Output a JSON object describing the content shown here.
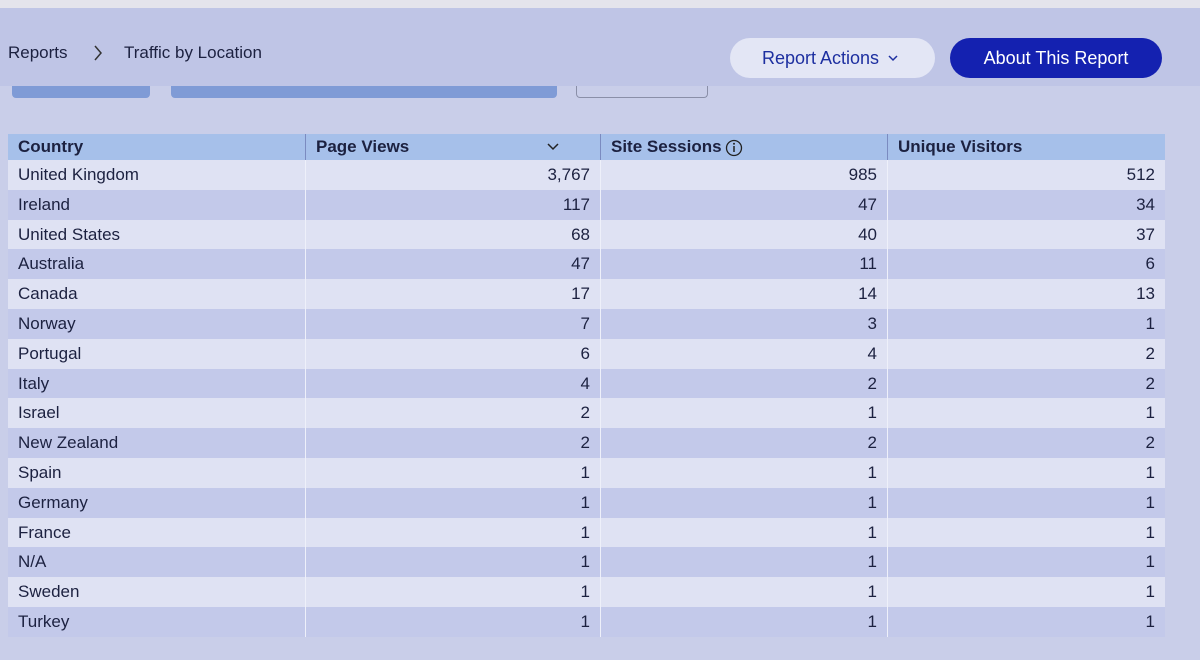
{
  "header": {
    "breadcrumb": [
      "Reports",
      "Traffic by Location"
    ],
    "buttons": [
      "Report Actions",
      "About This Report"
    ]
  },
  "table": {
    "columns": [
      "Country",
      "Page Views",
      "Site Sessions",
      "Unique Visitors"
    ],
    "rows": [
      [
        "United Kingdom",
        "3,767",
        "985",
        "512"
      ],
      [
        "Ireland",
        "117",
        "47",
        "34"
      ],
      [
        "United States",
        "68",
        "40",
        "37"
      ],
      [
        "Australia",
        "47",
        "11",
        "6"
      ],
      [
        "Canada",
        "17",
        "14",
        "13"
      ],
      [
        "Norway",
        "7",
        "3",
        "1"
      ],
      [
        "Portugal",
        "6",
        "4",
        "2"
      ],
      [
        "Italy",
        "4",
        "2",
        "2"
      ],
      [
        "Israel",
        "2",
        "1",
        "1"
      ],
      [
        "New Zealand",
        "2",
        "2",
        "2"
      ],
      [
        "Spain",
        "1",
        "1",
        "1"
      ],
      [
        "Germany",
        "1",
        "1",
        "1"
      ],
      [
        "France",
        "1",
        "1",
        "1"
      ],
      [
        "N/A",
        "1",
        "1",
        "1"
      ],
      [
        "Sweden",
        "1",
        "1",
        "1"
      ],
      [
        "Turkey",
        "1",
        "1",
        "1"
      ]
    ]
  }
}
